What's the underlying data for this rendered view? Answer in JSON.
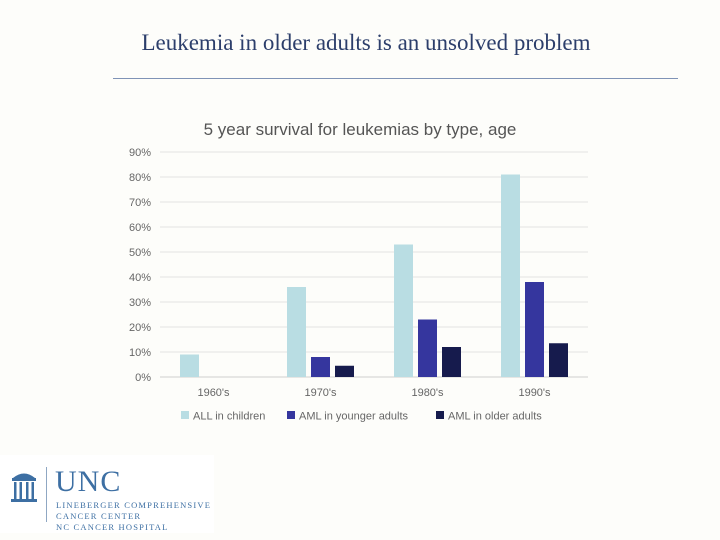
{
  "slide": {
    "title": "Leukemia in older adults is an unsolved problem"
  },
  "chart_data": {
    "type": "bar",
    "title": "5 year survival for leukemias by type, age",
    "categories": [
      "1960's",
      "1970's",
      "1980's",
      "1990's"
    ],
    "series": [
      {
        "name": "ALL in children",
        "values": [
          9,
          36,
          53,
          81
        ]
      },
      {
        "name": "AML in younger adults",
        "values": [
          0,
          8,
          23,
          38
        ]
      },
      {
        "name": "AML in older adults",
        "values": [
          0,
          4.5,
          12,
          13.5
        ]
      }
    ],
    "y_ticks": [
      "0%",
      "10%",
      "20%",
      "30%",
      "40%",
      "50%",
      "60%",
      "70%",
      "80%",
      "90%"
    ],
    "ylim": [
      0,
      90
    ],
    "grid": true,
    "legend": "bottom",
    "colors": [
      "#b9dde3",
      "#35369e",
      "#161b4d"
    ]
  },
  "logo": {
    "name": "UNC",
    "lines": [
      "LINEBERGER COMPREHENSIVE",
      "CANCER CENTER",
      "NC CANCER HOSPITAL"
    ],
    "mark_icon": "old-well-icon"
  }
}
